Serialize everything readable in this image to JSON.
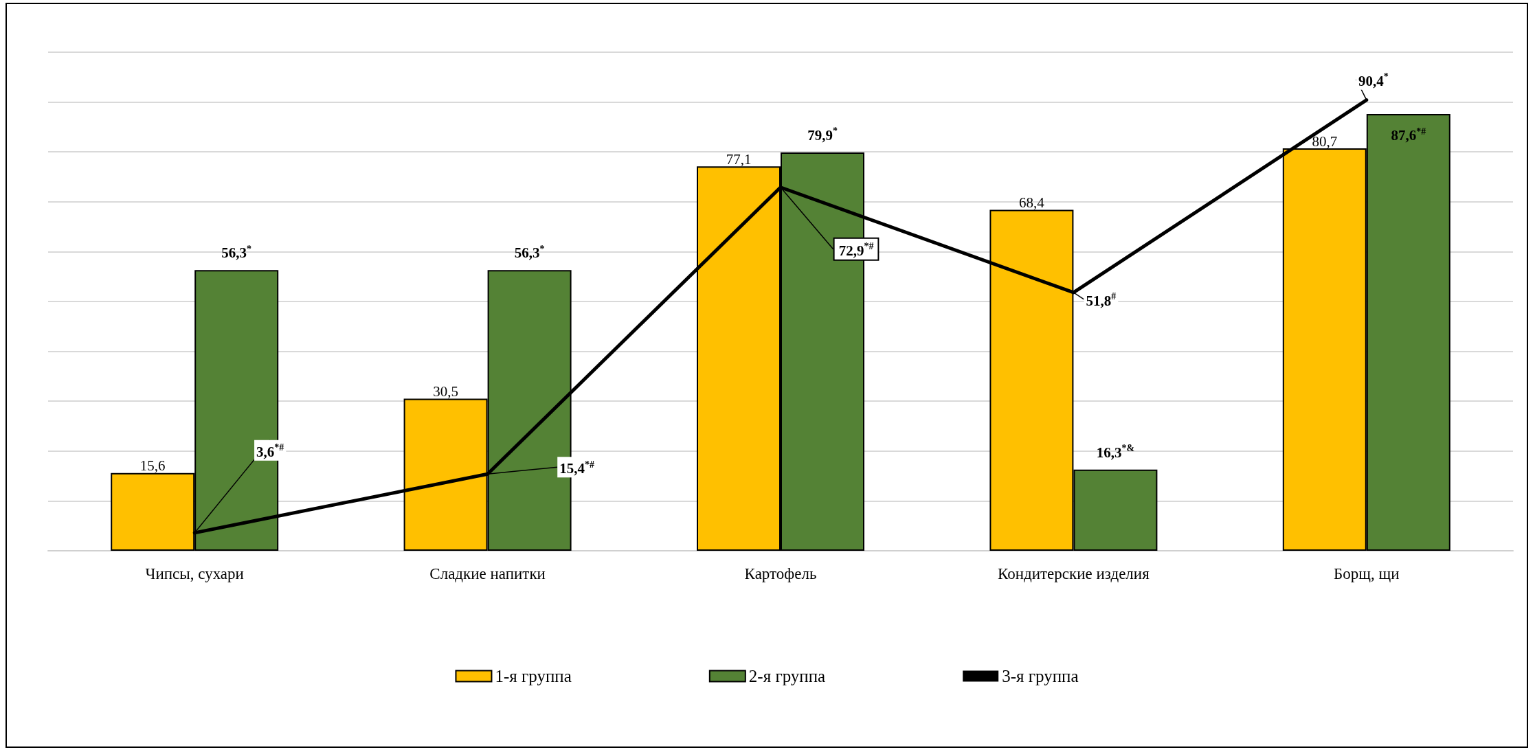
{
  "chart_data": {
    "type": "bar",
    "categories": [
      "Чипсы, сухари",
      "Сладкие напитки",
      "Картофель",
      "Кондитерские изделия",
      "Борщ, щи"
    ],
    "series": [
      {
        "name": "1-я группа",
        "color": "#ffc000",
        "values": [
          15.6,
          30.5,
          77.1,
          68.4,
          80.7
        ],
        "value_labels": [
          "15,6",
          "30,5",
          "77,1",
          "68,4",
          "80,7"
        ]
      },
      {
        "name": "2-я группа",
        "color": "#548235",
        "values": [
          56.3,
          56.3,
          79.9,
          16.3,
          87.6
        ],
        "value_labels": [
          "56,3$^{*}$",
          "56,3$^{*}$",
          "79,9$^{*}$",
          "16,3$^{*&}$",
          "87,6$^{*#}$"
        ]
      },
      {
        "name": "3-я группа",
        "type": "line",
        "color": "#000000",
        "values": [
          3.6,
          15.4,
          72.9,
          51.8,
          90.4
        ],
        "value_labels": [
          "3,6$^{*#}$",
          "15,4$^{*#}$",
          "72,9$^{*#}$",
          "51,8$^{#}$",
          "90,4$^{*}$"
        ]
      }
    ],
    "ylim": [
      0,
      100
    ],
    "yticks": [
      {
        "value": 0,
        "label": null
      },
      {
        "value": 10,
        "label": null
      },
      {
        "value": 20,
        "label": null
      },
      {
        "value": 30,
        "label": null
      },
      {
        "value": 40,
        "label": null
      },
      {
        "value": 50,
        "label": null
      },
      {
        "value": 60,
        "label": null
      },
      {
        "value": 70,
        "label": null
      },
      {
        "value": 80,
        "label": null
      },
      {
        "value": 90,
        "label": null
      },
      {
        "value": 100,
        "label": null
      }
    ],
    "grid": "y",
    "tick_labels": "x",
    "legend": "bottom",
    "marker": "none",
    "line_style": "solid"
  }
}
